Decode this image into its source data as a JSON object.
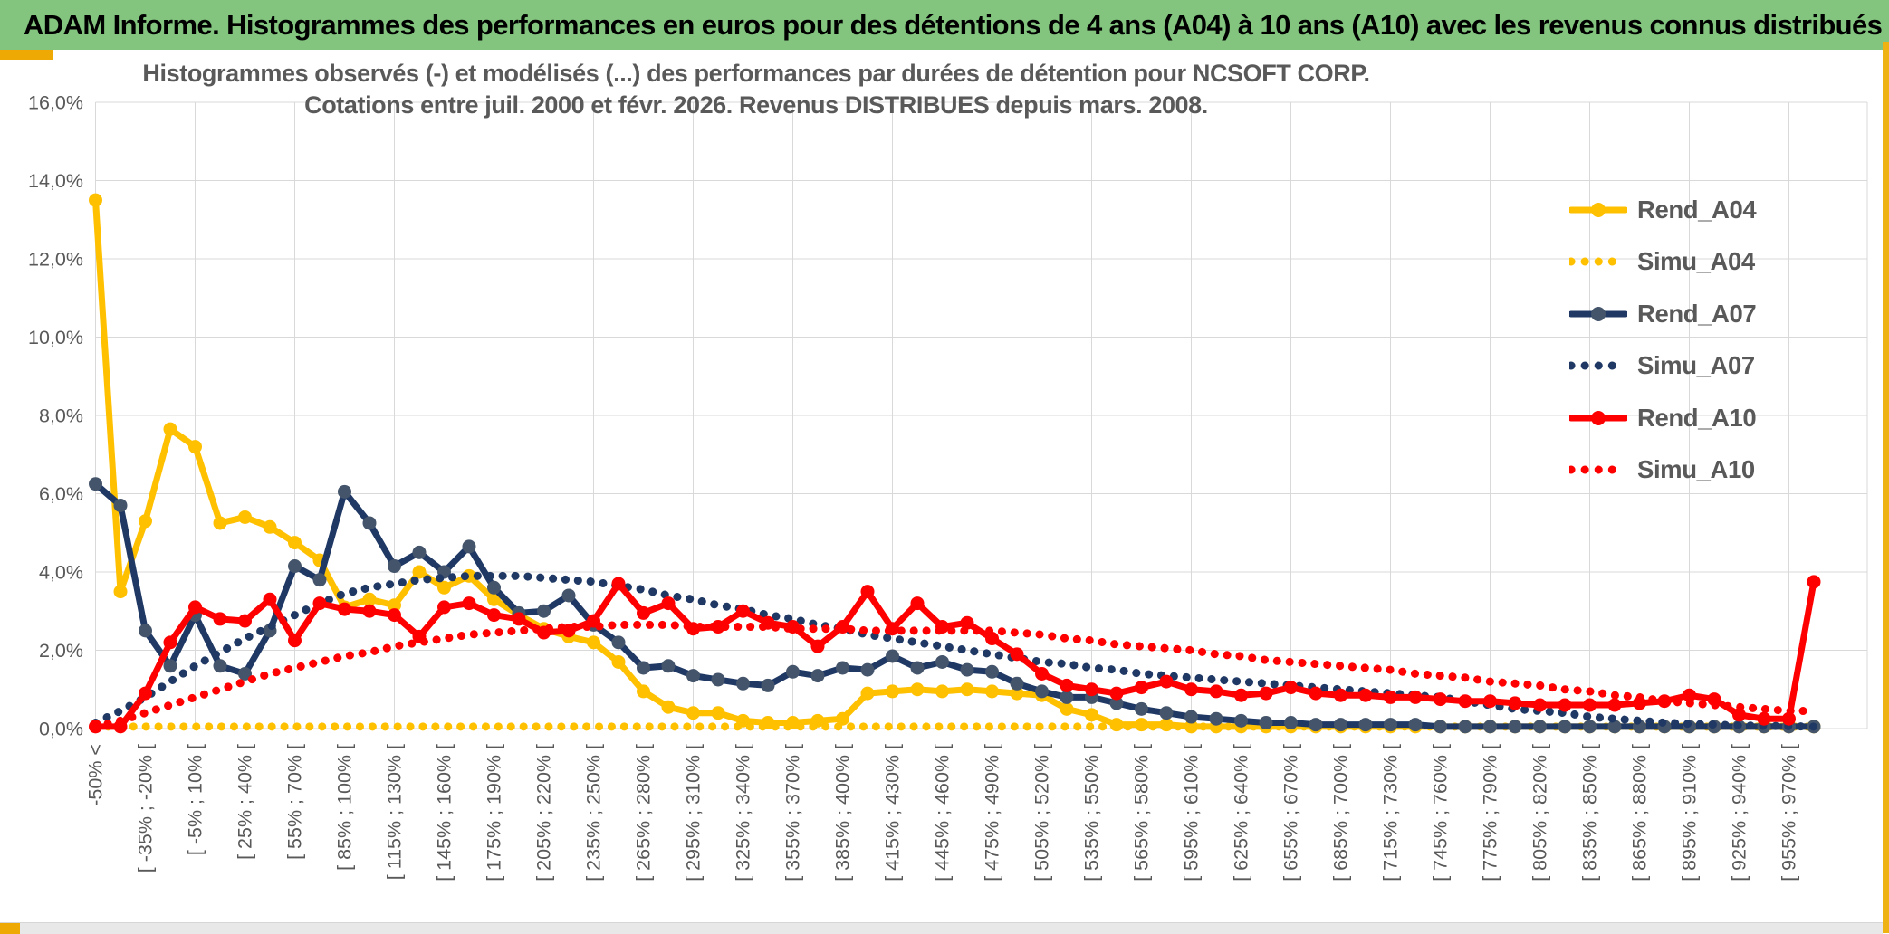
{
  "header": {
    "title": "ADAM Informe. Histogrammes des performances en euros pour des détentions de 4 ans (A04) à 10 ans (A10) avec les revenus connus distribués"
  },
  "chart": {
    "title_line1": "Histogrammes observés (-) et modélisés (...) des performances par durées de détention pour NCSOFT CORP.",
    "title_line2": "Cotations entre juil. 2000 et févr. 2026. Revenus DISTRIBUES depuis mars. 2008."
  },
  "accent_color": "#EEA904",
  "header_color": "#83C57F",
  "chart_data": {
    "type": "line",
    "title": "Histogrammes observés (-) et modélisés (...) des performances par durées de détention pour NCSOFT CORP.",
    "subtitle": "Cotations entre juil. 2000 et févr. 2026. Revenus DISTRIBUES depuis mars. 2008.",
    "grid": true,
    "legend_position": "right",
    "y_axis": {
      "min": 0,
      "max": 16,
      "step": 2,
      "tick_labels": [
        "0,0%",
        "2,0%",
        "4,0%",
        "6,0%",
        "8,0%",
        "10,0%",
        "12,0%",
        "14,0%",
        "16,0%"
      ]
    },
    "x_axis": {
      "n_points": 70,
      "labeled_every": 2,
      "labels": [
        "-50% <",
        "[ -35% ; -20% [",
        "[ -5% ; 10% [",
        "[ 25% ; 40% [",
        "[ 55% ; 70% [",
        "[ 85% ; 100% [",
        "[ 115% ; 130% [",
        "[ 145% ; 160% [",
        "[ 175% ; 190% [",
        "[ 205% ; 220% [",
        "[ 235% ; 250% [",
        "[ 265% ; 280% [",
        "[ 295% ; 310% [",
        "[ 325% ; 340% [",
        "[ 355% ; 370% [",
        "[ 385% ; 400% [",
        "[ 415% ; 430% [",
        "[ 445% ; 460% [",
        "[ 475% ; 490% [",
        "[ 505% ; 520% [",
        "[ 535% ; 550% [",
        "[ 565% ; 580% [",
        "[ 595% ; 610% [",
        "[ 625% ; 640% [",
        "[ 655% ; 670% [",
        "[ 685% ; 700% [",
        "[ 715% ; 730% [",
        "[ 745% ; 760% [",
        "[ 775% ; 790% [",
        "[ 805% ; 820% [",
        "[ 835% ; 850% [",
        "[ 865% ; 880% [",
        "[ 895% ; 910% [",
        "[ 925% ; 940% [",
        "[ 955% ; 970% ["
      ]
    },
    "series": [
      {
        "name": "Rend_A04",
        "color": "#FFC000",
        "style": "solid",
        "marker": "#FFC000",
        "values": [
          13.5,
          3.5,
          5.3,
          7.65,
          7.2,
          5.25,
          5.4,
          5.15,
          4.75,
          4.3,
          3.1,
          3.3,
          3.15,
          4.0,
          3.6,
          3.9,
          3.3,
          2.9,
          2.55,
          2.35,
          2.2,
          1.7,
          0.95,
          0.55,
          0.4,
          0.4,
          0.2,
          0.15,
          0.15,
          0.2,
          0.25,
          0.9,
          0.95,
          1.0,
          0.95,
          1.0,
          0.95,
          0.9,
          0.85,
          0.5,
          0.35,
          0.1,
          0.1,
          0.1,
          0.05,
          0.05,
          0.05,
          0.05,
          0.05,
          0.05,
          0.05,
          0.05,
          0.05,
          0.05,
          0.05,
          0.05,
          0.05,
          0.05,
          0.05,
          0.05,
          0.05,
          0.05,
          0.05,
          0.05,
          0.05,
          0.05,
          0.05,
          0.05,
          0.05,
          0.05
        ]
      },
      {
        "name": "Simu_A04",
        "color": "#FFC000",
        "style": "dotted",
        "marker": null,
        "values": [
          0.05,
          0.05,
          0.05,
          0.05,
          0.05,
          0.05,
          0.05,
          0.05,
          0.05,
          0.05,
          0.05,
          0.05,
          0.05,
          0.05,
          0.05,
          0.05,
          0.05,
          0.05,
          0.05,
          0.05,
          0.05,
          0.05,
          0.05,
          0.05,
          0.05,
          0.05,
          0.05,
          0.05,
          0.05,
          0.05,
          0.05,
          0.05,
          0.05,
          0.05,
          0.05,
          0.05,
          0.05,
          0.05,
          0.05,
          0.05,
          0.05,
          0.05,
          0.05,
          0.05,
          0.05,
          0.05,
          0.05,
          0.05,
          0.05,
          0.05,
          0.05,
          0.05,
          0.05,
          0.05,
          0.05,
          0.05,
          0.05,
          0.05,
          0.05,
          0.05,
          0.05,
          0.05,
          0.05,
          0.05,
          0.05,
          0.05,
          0.05,
          0.05,
          0.05,
          0.05
        ]
      },
      {
        "name": "Rend_A07",
        "color": "#1F3864",
        "style": "solid",
        "marker": "#44546A",
        "values": [
          6.25,
          5.7,
          2.5,
          1.6,
          2.9,
          1.6,
          1.4,
          2.5,
          4.15,
          3.8,
          6.05,
          5.25,
          4.15,
          4.5,
          4.0,
          4.65,
          3.6,
          2.95,
          3.0,
          3.4,
          2.65,
          2.2,
          1.55,
          1.6,
          1.35,
          1.25,
          1.15,
          1.1,
          1.45,
          1.35,
          1.55,
          1.5,
          1.85,
          1.55,
          1.7,
          1.5,
          1.45,
          1.15,
          0.95,
          0.8,
          0.8,
          0.65,
          0.5,
          0.4,
          0.3,
          0.25,
          0.2,
          0.15,
          0.15,
          0.1,
          0.1,
          0.1,
          0.1,
          0.1,
          0.05,
          0.05,
          0.05,
          0.05,
          0.05,
          0.05,
          0.05,
          0.05,
          0.05,
          0.05,
          0.05,
          0.05,
          0.05,
          0.05,
          0.05,
          0.05
        ]
      },
      {
        "name": "Simu_A07",
        "color": "#1F3864",
        "style": "dotted",
        "marker": null,
        "values": [
          0.15,
          0.45,
          0.8,
          1.2,
          1.6,
          1.95,
          2.3,
          2.6,
          2.9,
          3.2,
          3.45,
          3.6,
          3.7,
          3.8,
          3.85,
          3.9,
          3.9,
          3.9,
          3.85,
          3.8,
          3.75,
          3.65,
          3.55,
          3.4,
          3.3,
          3.15,
          3.05,
          2.9,
          2.8,
          2.65,
          2.55,
          2.4,
          2.3,
          2.2,
          2.1,
          2.0,
          1.9,
          1.8,
          1.7,
          1.65,
          1.55,
          1.5,
          1.4,
          1.35,
          1.3,
          1.25,
          1.2,
          1.15,
          1.1,
          1.05,
          1.0,
          0.95,
          0.9,
          0.85,
          0.8,
          0.7,
          0.6,
          0.5,
          0.45,
          0.4,
          0.3,
          0.25,
          0.2,
          0.15,
          0.12,
          0.1,
          0.08,
          0.07,
          0.06,
          0.05
        ]
      },
      {
        "name": "Rend_A10",
        "color": "#FF0000",
        "style": "solid",
        "marker": "#FF0000",
        "values": [
          0.05,
          0.05,
          0.9,
          2.2,
          3.1,
          2.8,
          2.75,
          3.3,
          2.25,
          3.2,
          3.05,
          3.0,
          2.9,
          2.35,
          3.1,
          3.2,
          2.9,
          2.8,
          2.45,
          2.5,
          2.75,
          3.7,
          2.95,
          3.2,
          2.55,
          2.6,
          3.0,
          2.7,
          2.6,
          2.1,
          2.6,
          3.5,
          2.55,
          3.2,
          2.6,
          2.7,
          2.3,
          1.9,
          1.4,
          1.1,
          1.0,
          0.9,
          1.05,
          1.2,
          1.0,
          0.95,
          0.85,
          0.9,
          1.05,
          0.9,
          0.85,
          0.85,
          0.8,
          0.8,
          0.75,
          0.7,
          0.7,
          0.65,
          0.6,
          0.6,
          0.6,
          0.6,
          0.65,
          0.7,
          0.85,
          0.75,
          0.35,
          0.25,
          0.25,
          3.75
        ]
      },
      {
        "name": "Simu_A10",
        "color": "#FF0000",
        "style": "dotted",
        "marker": null,
        "values": [
          0.05,
          0.2,
          0.4,
          0.6,
          0.8,
          1.0,
          1.2,
          1.4,
          1.55,
          1.7,
          1.85,
          1.95,
          2.1,
          2.2,
          2.3,
          2.4,
          2.45,
          2.5,
          2.55,
          2.6,
          2.6,
          2.65,
          2.65,
          2.65,
          2.6,
          2.6,
          2.6,
          2.6,
          2.55,
          2.55,
          2.55,
          2.5,
          2.5,
          2.5,
          2.5,
          2.5,
          2.5,
          2.45,
          2.4,
          2.3,
          2.25,
          2.15,
          2.1,
          2.05,
          2.0,
          1.9,
          1.85,
          1.75,
          1.7,
          1.65,
          1.6,
          1.55,
          1.5,
          1.4,
          1.35,
          1.3,
          1.2,
          1.15,
          1.1,
          1.0,
          0.95,
          0.85,
          0.8,
          0.7,
          0.65,
          0.6,
          0.55,
          0.5,
          0.45,
          0.45
        ]
      }
    ]
  }
}
